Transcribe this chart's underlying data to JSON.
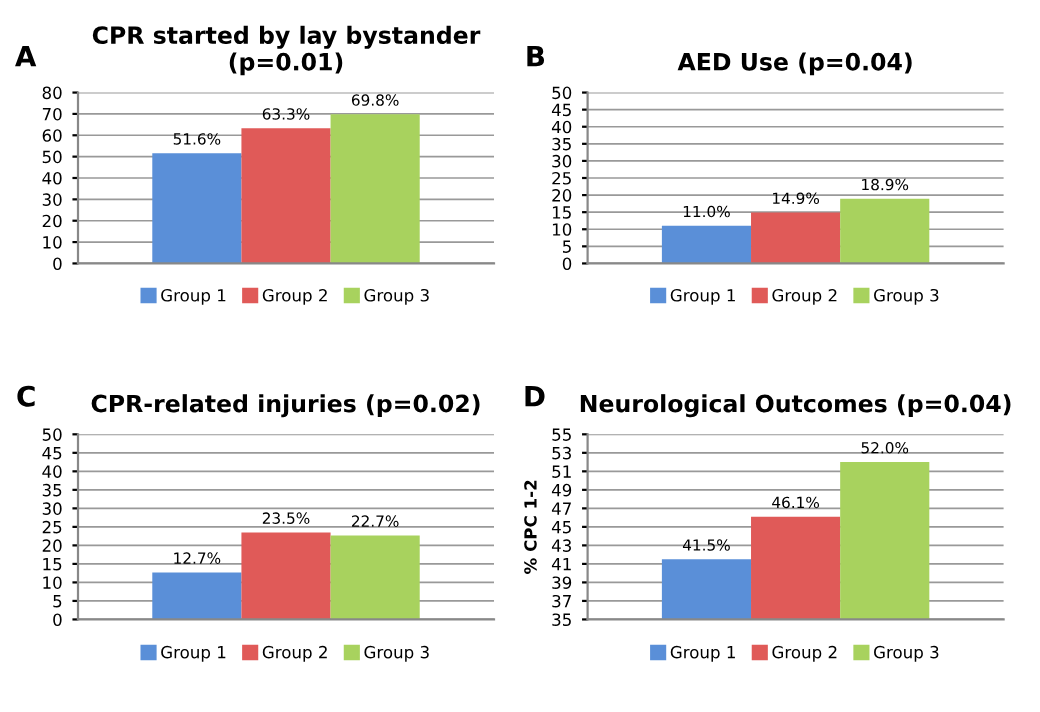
{
  "chart_data": [
    {
      "type": "bar",
      "title": "CPR started by lay bystander\n(p=0.01)",
      "annotations": [
        "A"
      ],
      "categories": [
        null
      ],
      "ylim": [
        0,
        80
      ],
      "yticks": [
        0,
        10,
        20,
        30,
        40,
        50,
        60,
        70,
        80
      ],
      "grid": "y",
      "legend": "bottom",
      "series": [
        {
          "name": "Group 1",
          "color": "#5a8fd8",
          "values": [
            51.6
          ],
          "value_labels": [
            "51.6%"
          ]
        },
        {
          "name": "Group 2",
          "color": "#e05a58",
          "values": [
            63.3
          ],
          "value_labels": [
            "63.3%"
          ]
        },
        {
          "name": "Group 3",
          "color": "#a8d25e",
          "values": [
            69.8
          ],
          "value_labels": [
            "69.8%"
          ]
        }
      ]
    },
    {
      "type": "bar",
      "title": "AED Use (p=0.04)",
      "annotations": [
        "B"
      ],
      "categories": [
        null
      ],
      "ylim": [
        0,
        50
      ],
      "yticks": [
        0,
        5,
        10,
        15,
        20,
        25,
        30,
        35,
        40,
        45,
        50
      ],
      "grid": "y",
      "legend": "bottom",
      "series": [
        {
          "name": "Group 1",
          "color": "#5a8fd8",
          "values": [
            11.0
          ],
          "value_labels": [
            "11.0%"
          ]
        },
        {
          "name": "Group 2",
          "color": "#e05a58",
          "values": [
            14.9
          ],
          "value_labels": [
            "14.9%"
          ]
        },
        {
          "name": "Group 3",
          "color": "#a8d25e",
          "values": [
            18.9
          ],
          "value_labels": [
            "18.9%"
          ]
        }
      ]
    },
    {
      "type": "bar",
      "title": "CPR-related injuries (p=0.02)",
      "annotations": [
        "C"
      ],
      "categories": [
        null
      ],
      "ylim": [
        0,
        50
      ],
      "yticks": [
        0,
        5,
        10,
        15,
        20,
        25,
        30,
        35,
        40,
        45,
        50
      ],
      "grid": "y",
      "legend": "bottom",
      "series": [
        {
          "name": "Group 1",
          "color": "#5a8fd8",
          "values": [
            12.7
          ],
          "value_labels": [
            "12.7%"
          ]
        },
        {
          "name": "Group 2",
          "color": "#e05a58",
          "values": [
            23.5
          ],
          "value_labels": [
            "23.5%"
          ]
        },
        {
          "name": "Group 3",
          "color": "#a8d25e",
          "values": [
            22.7
          ],
          "value_labels": [
            "22.7%"
          ]
        }
      ]
    },
    {
      "type": "bar",
      "title": "Neurological Outcomes (p=0.04)",
      "annotations": [
        "D"
      ],
      "ylabel": "% CPC 1-2",
      "categories": [
        null
      ],
      "ylim": [
        35,
        55
      ],
      "yticks": [
        35,
        37,
        39,
        41,
        43,
        45,
        47,
        49,
        51,
        53,
        55
      ],
      "grid": "y",
      "legend": "bottom",
      "series": [
        {
          "name": "Group 1",
          "color": "#5a8fd8",
          "values": [
            41.5
          ],
          "value_labels": [
            "41.5%"
          ]
        },
        {
          "name": "Group 2",
          "color": "#e05a58",
          "values": [
            46.1
          ],
          "value_labels": [
            "46.1%"
          ]
        },
        {
          "name": "Group 3",
          "color": "#a8d25e",
          "values": [
            52.0
          ],
          "value_labels": [
            "52.0%"
          ]
        }
      ]
    }
  ]
}
